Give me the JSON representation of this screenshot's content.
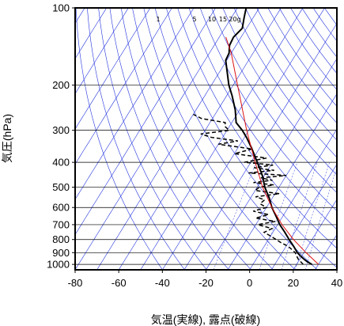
{
  "chart_data": {
    "type": "line",
    "title": "",
    "xlabel": "気温(実線), 露点(破線)",
    "ylabel": "気圧(hPa)",
    "x_axis": {
      "min": -80,
      "max": 40,
      "ticks": [
        -80,
        -60,
        -40,
        -20,
        0,
        20,
        40
      ]
    },
    "y_axis": {
      "scale": "log",
      "reversed": true,
      "min": 100,
      "max": 1050,
      "ticks": [
        100,
        200,
        300,
        400,
        500,
        600,
        700,
        800,
        900,
        1000
      ]
    },
    "skew_t": true,
    "mixing_ratio_labels": [
      "1",
      "5",
      "10",
      "15",
      "20g"
    ],
    "mixing_ratios": [
      1,
      5,
      10,
      15,
      20
    ],
    "colors": {
      "isolines": "#2233dd",
      "reference": "#dd1111",
      "frame": "#000000",
      "grid": "#000000"
    },
    "series": [
      {
        "style": "solid",
        "width": 2,
        "p": [
          1000,
          975,
          950,
          925,
          900,
          850,
          800,
          750,
          700,
          650,
          600,
          550,
          500,
          450,
          400,
          350,
          320,
          300,
          280,
          250,
          220,
          200,
          180,
          160,
          150,
          140,
          130,
          120,
          110,
          105,
          100
        ],
        "t": [
          27,
          24,
          21.5,
          19.2,
          17,
          13.5,
          9.5,
          5.5,
          1,
          -3,
          -7.5,
          -11.5,
          -16.5,
          -21,
          -27,
          -34,
          -39,
          -43,
          -48,
          -52,
          -57.5,
          -62,
          -66,
          -70.5,
          -71,
          -73,
          -73.5,
          -72,
          -74,
          -75,
          -76
        ]
      },
      {
        "style": "dashed",
        "width": 1.5,
        "p": [
          1000,
          975,
          950,
          925,
          900,
          850,
          825,
          800,
          775,
          750,
          725,
          700,
          680,
          660,
          640,
          620,
          600,
          580,
          560,
          545,
          530,
          515,
          500,
          490,
          480,
          470,
          460,
          450,
          440,
          430,
          420,
          410,
          400,
          385,
          370,
          355,
          340,
          330,
          320,
          310,
          300,
          290,
          280,
          270,
          260
        ],
        "t": [
          23,
          21,
          19,
          17.5,
          16,
          11,
          7,
          3.5,
          0,
          -4,
          -1.5,
          -9,
          -2,
          -12,
          -7,
          -15,
          -10,
          -14,
          -13,
          -18,
          -8,
          -20,
          -19,
          -13,
          -23,
          -15,
          -21,
          -10,
          -28,
          -17,
          -27,
          -19,
          -33,
          -24,
          -40,
          -33,
          -50,
          -42,
          -55,
          -61,
          -49,
          -52,
          -53,
          -65,
          -70
        ]
      },
      {
        "style": "solid",
        "width": 1,
        "p": [
          1000,
          900,
          800,
          700,
          600,
          500,
          400,
          300,
          200,
          150,
          130
        ],
        "t": [
          30,
          21,
          11.5,
          2,
          -7.5,
          -17.5,
          -28,
          -41,
          -58,
          -70,
          -77
        ]
      }
    ]
  }
}
